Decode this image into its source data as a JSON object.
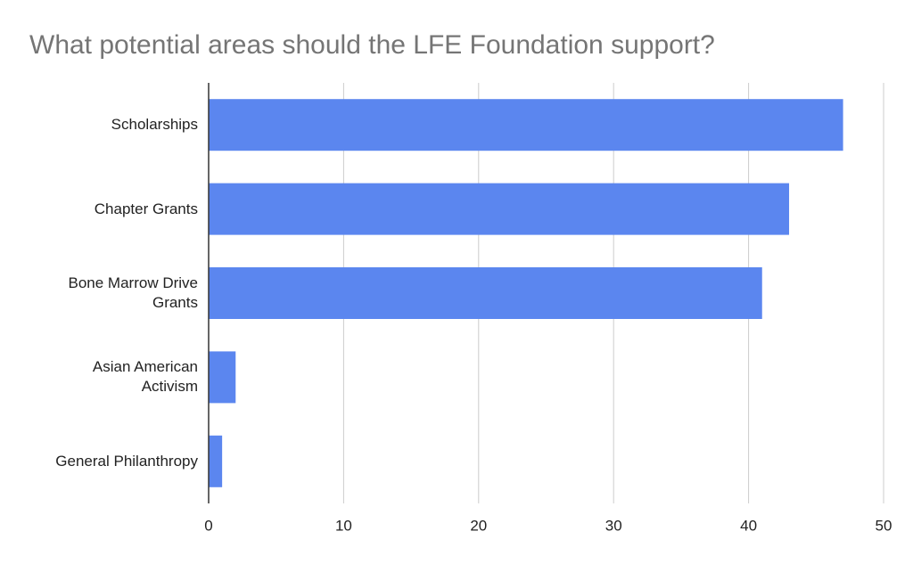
{
  "chart_data": {
    "type": "bar",
    "orientation": "horizontal",
    "title": "What potential areas should the LFE Foundation support?",
    "categories": [
      "Scholarships",
      "Chapter Grants",
      "Bone Marrow Drive Grants",
      "Asian American Activism",
      "General Philanthropy"
    ],
    "values": [
      47,
      43,
      41,
      2,
      1
    ],
    "color": "#5b86ef",
    "xlim": [
      0,
      50
    ],
    "xticks": [
      0,
      10,
      20,
      30,
      40,
      50
    ],
    "grid": true
  }
}
